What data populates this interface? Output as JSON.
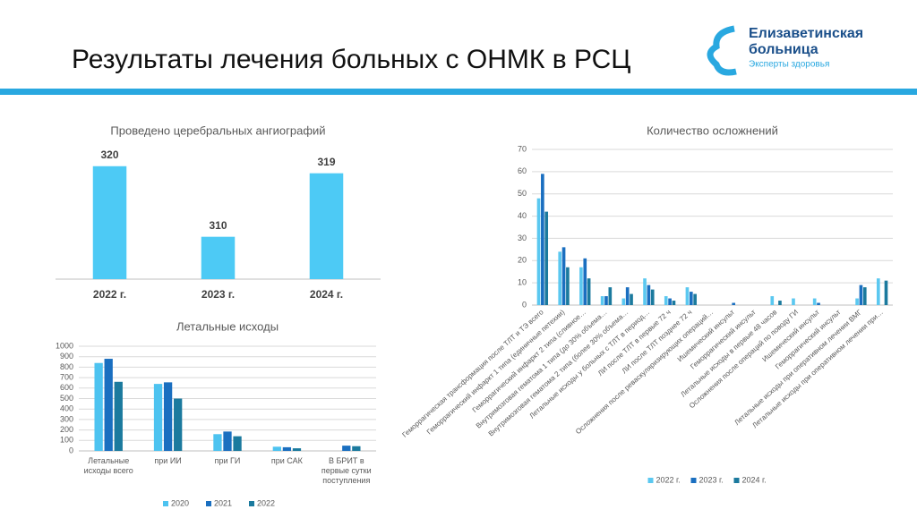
{
  "header": {
    "title": "Результаты лечения больных с ОНМК в РСЦ",
    "logo_line1": "Елизаветинская",
    "logo_line2": "больница",
    "logo_tagline": "Эксперты здоровья"
  },
  "chart_data": [
    {
      "type": "bar",
      "title": "Проведено церебральных ангиографий",
      "categories": [
        "2022 г.",
        "2023 г.",
        "2024 г."
      ],
      "values": [
        320,
        310,
        319
      ],
      "color": "#4dcaf5",
      "ylim": [
        304,
        322
      ],
      "grid": false
    },
    {
      "type": "bar",
      "title": "Летальные исходы",
      "categories": [
        "Летальные исходы всего",
        "при ИИ",
        "при ГИ",
        "при САК",
        "В БРИТ в первые сутки поступления"
      ],
      "series": [
        {
          "name": "2020",
          "color": "#4dc3f0",
          "values": [
            840,
            640,
            160,
            40,
            0
          ]
        },
        {
          "name": "2021",
          "color": "#1a6fc0",
          "values": [
            880,
            655,
            185,
            35,
            50
          ]
        },
        {
          "name": "2022",
          "color": "#1b7a9e",
          "values": [
            660,
            500,
            140,
            25,
            45
          ]
        }
      ],
      "ylim": [
        0,
        1000
      ],
      "yticks": [
        0,
        100,
        200,
        300,
        400,
        500,
        600,
        700,
        800,
        900,
        1000
      ],
      "grid": true
    },
    {
      "type": "bar",
      "title": "Количество осложнений",
      "categories": [
        "Геморрагическая трансформация после ТЛТ и ТЭ всего",
        "Геморрагический инфаркт 1 типа (единичные петехии)",
        "Геморрагический инфаркт 2 типа (сливное…",
        "Внутримозговая гематома 1 типа (до 30% объема…",
        "Внутримозговая гематома 2 типа (более 30% объема…",
        "Летальные исходы у больных с ТЛТ в период…",
        "ЛИ после ТЛТ в первые 72 ч",
        "ЛИ после ТЛТ позднее 72 ч",
        "Осложнения после реваскуляризирующих операций…",
        "Ишемический инсульт",
        "Геморрагический инсульт",
        "Летальные исходы в первые 48 часов",
        "Осложнения после операций по поводу ГИ",
        "Ишемический инсульт",
        "Геморрагический инсульт",
        "Летальные исходы при оперативном лечении ВМГ",
        "Летальные исходы при оперативном лечении при…"
      ],
      "series": [
        {
          "name": "2022 г.",
          "color": "#5bc8f0",
          "values": [
            48,
            24,
            17,
            4,
            3,
            12,
            4,
            8,
            0,
            0,
            0,
            4,
            3,
            3,
            0,
            3,
            12
          ]
        },
        {
          "name": "2023 г.",
          "color": "#1a6fc0",
          "values": [
            59,
            26,
            21,
            4,
            8,
            9,
            3,
            6,
            0,
            1,
            0,
            0,
            0,
            1,
            0,
            9,
            0
          ]
        },
        {
          "name": "2024 г.",
          "color": "#1b7a9e",
          "values": [
            42,
            17,
            12,
            8,
            5,
            7,
            2,
            5,
            0,
            0,
            0,
            2,
            0,
            0,
            0,
            8,
            11
          ]
        }
      ],
      "ylim": [
        0,
        70
      ],
      "yticks": [
        0,
        10,
        20,
        30,
        40,
        50,
        60,
        70
      ],
      "grid": true
    }
  ]
}
